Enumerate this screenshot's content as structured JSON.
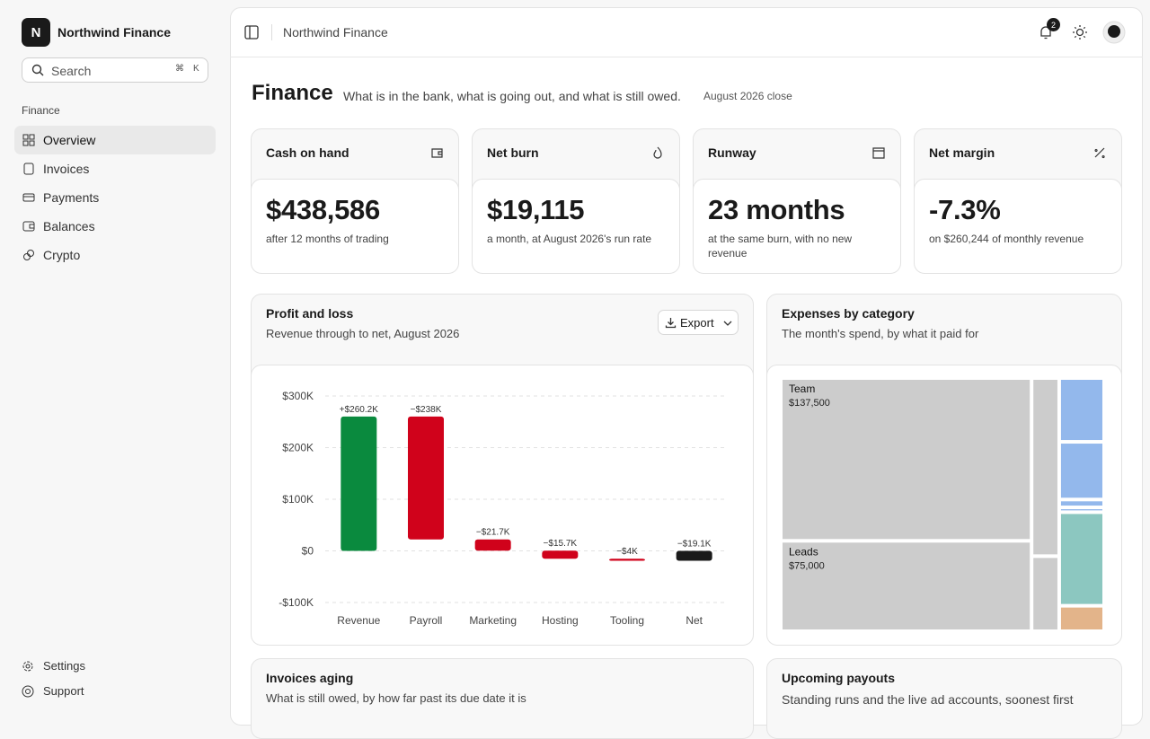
{
  "sidebar": {
    "brand_initial": "N",
    "brand": "Northwind Finance",
    "search": "Search",
    "shortcut": [
      "⌘",
      "K"
    ],
    "section": "Finance",
    "nav": [
      "Overview",
      "Invoices",
      "Payments",
      "Balances",
      "Crypto"
    ],
    "footer": [
      "Settings",
      "Support"
    ]
  },
  "topbar": {
    "breadcrumb": "Northwind Finance",
    "notifications": "2"
  },
  "header": {
    "title": "Finance",
    "subtitle": "What is in the bank, what is going out, and what is still owed.",
    "period": "August 2026 close"
  },
  "kpis": [
    {
      "label": "Cash on hand",
      "value": "$438,586",
      "note": "after 12 months of trading"
    },
    {
      "label": "Net burn",
      "value": "$19,115",
      "note": "a month, at August 2026's run rate"
    },
    {
      "label": "Runway",
      "value": "23 months",
      "note": "at the same burn, with no new revenue"
    },
    {
      "label": "Net margin",
      "value": "-7.3%",
      "note": "on $260,244 of monthly revenue"
    }
  ],
  "chart_data": [
    {
      "type": "waterfall",
      "title": "Profit and loss",
      "subtitle": "Revenue through to net, August 2026",
      "button": "Export",
      "categories": [
        "Revenue",
        "Payroll",
        "Marketing",
        "Hosting",
        "Tooling",
        "Net"
      ],
      "values": [
        260200,
        -238000,
        -21700,
        -15700,
        -4000,
        -19100
      ],
      "value_labels": [
        "+$260.2K",
        "−$238K",
        "−$21.7K",
        "−$15.7K",
        "−$4K",
        "−$19.1K"
      ],
      "increase_color": "#0a8a3e",
      "decrease_color": "#d0021b",
      "total_color": "#1a1a1a",
      "ylim": [
        -100000,
        300000
      ],
      "yticks": [
        {
          "value": -100000,
          "label": "-$100K"
        },
        {
          "value": 0,
          "label": "$0"
        },
        {
          "value": 100000,
          "label": "$100K"
        },
        {
          "value": 200000,
          "label": "$200K"
        },
        {
          "value": 300000,
          "label": "$300K"
        }
      ],
      "grid": true
    },
    {
      "type": "treemap",
      "title": "Expenses by category",
      "subtitle": "The month's spend, by what it paid for",
      "items": [
        {
          "name": "Team",
          "value": 137500,
          "value_label": "$137,500",
          "color": "#cccccc"
        },
        {
          "name": "Leads",
          "value": 75000,
          "value_label": "$75,000",
          "color": "#cccccc"
        },
        {
          "name": null,
          "value": 16600,
          "color": "#cccccc"
        },
        {
          "name": null,
          "value": 6800,
          "color": "#cccccc"
        },
        {
          "name": null,
          "value": 9900,
          "color": "#93b8ec"
        },
        {
          "name": null,
          "value": 8900,
          "color": "#93b8ec"
        },
        {
          "name": null,
          "value": 700,
          "color": "#93b8ec"
        },
        {
          "name": null,
          "value": 200,
          "color": "#93b8ec"
        },
        {
          "name": null,
          "value": 14800,
          "color": "#8cc7c0"
        },
        {
          "name": null,
          "value": 3600,
          "color": "#e3b48a"
        }
      ]
    }
  ],
  "lower_panels": [
    {
      "title": "Invoices aging",
      "subtitle": "What is still owed, by how far past its due date it is"
    },
    {
      "title": "Upcoming payouts",
      "subtitle": "Standing runs and the live ad accounts, soonest first"
    }
  ]
}
